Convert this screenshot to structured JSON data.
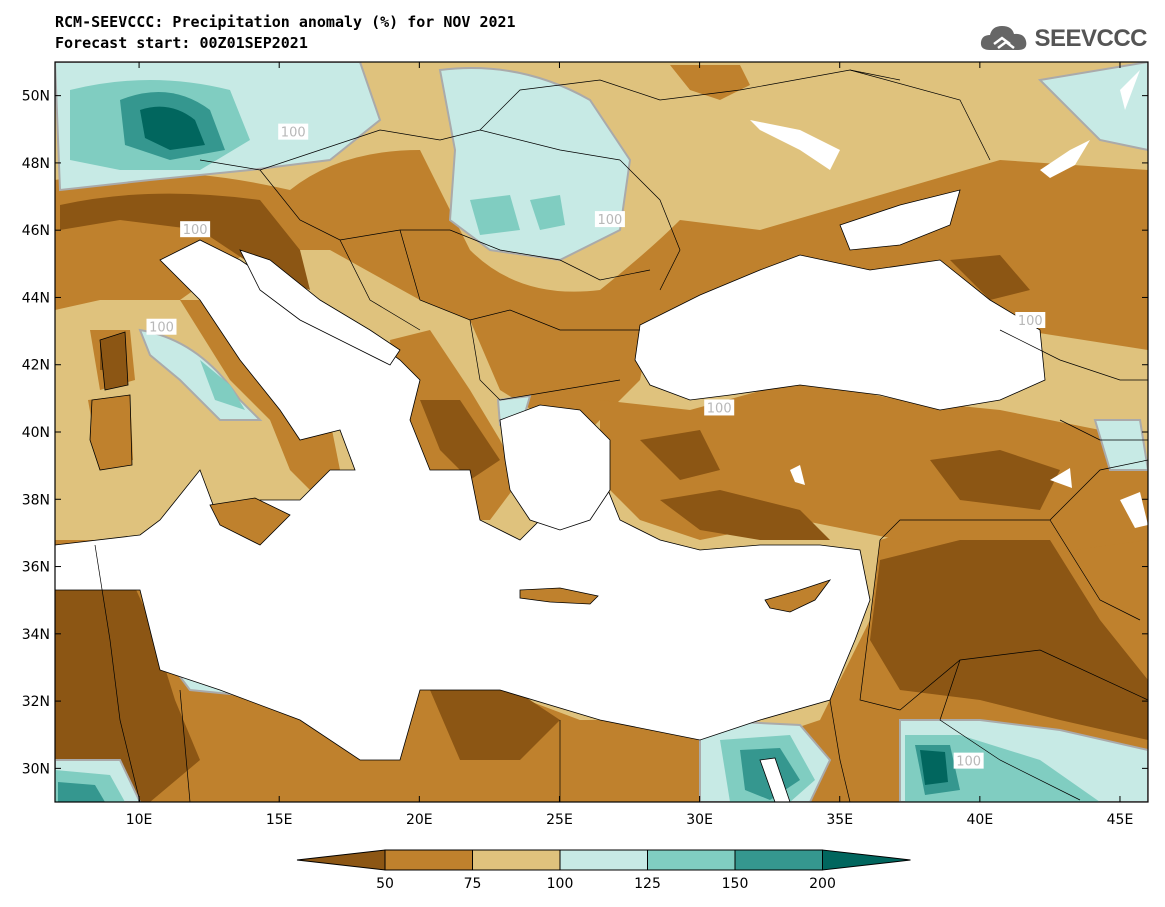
{
  "header": {
    "title_line1": "RCM-SEEVCCC: Precipitation anomaly (%) for NOV 2021",
    "title_line2": "Forecast start: 00Z01SEP2021"
  },
  "logo": {
    "text": "SEEVCCC",
    "icon": "cloud-icon"
  },
  "map": {
    "lon_range": [
      7,
      46
    ],
    "lat_range": [
      29,
      51
    ],
    "lat_ticks": [
      {
        "v": 30,
        "label": "30N"
      },
      {
        "v": 32,
        "label": "32N"
      },
      {
        "v": 34,
        "label": "34N"
      },
      {
        "v": 36,
        "label": "36N"
      },
      {
        "v": 38,
        "label": "38N"
      },
      {
        "v": 40,
        "label": "40N"
      },
      {
        "v": 42,
        "label": "42N"
      },
      {
        "v": 44,
        "label": "44N"
      },
      {
        "v": 46,
        "label": "46N"
      },
      {
        "v": 48,
        "label": "48N"
      },
      {
        "v": 50,
        "label": "50N"
      }
    ],
    "lon_ticks": [
      {
        "v": 10,
        "label": "10E"
      },
      {
        "v": 15,
        "label": "15E"
      },
      {
        "v": 20,
        "label": "20E"
      },
      {
        "v": 25,
        "label": "25E"
      },
      {
        "v": 30,
        "label": "30E"
      },
      {
        "v": 35,
        "label": "35E"
      },
      {
        "v": 40,
        "label": "40E"
      },
      {
        "v": 45,
        "label": "45E"
      }
    ],
    "contour_labels": [
      {
        "lon": 15.5,
        "lat": 48.9,
        "text": "100"
      },
      {
        "lon": 12.0,
        "lat": 46.0,
        "text": "100"
      },
      {
        "lon": 10.8,
        "lat": 43.1,
        "text": "100"
      },
      {
        "lon": 26.8,
        "lat": 46.3,
        "text": "100"
      },
      {
        "lon": 41.8,
        "lat": 43.3,
        "text": "100"
      },
      {
        "lon": 30.7,
        "lat": 40.7,
        "text": "100"
      },
      {
        "lon": 39.6,
        "lat": 30.2,
        "text": "100"
      }
    ],
    "colors": {
      "below_50": "#8c5614",
      "50_75": "#bf812d",
      "75_100": "#dfc27d",
      "100_125": "#c7eae5",
      "125_150": "#80cdc1",
      "150_200": "#35978f",
      "above_200": "#01665e",
      "sea": "#ffffff"
    }
  },
  "colorbar": {
    "ticks": [
      "50",
      "75",
      "100",
      "125",
      "150",
      "200"
    ],
    "colors": [
      "#8c5614",
      "#bf812d",
      "#dfc27d",
      "#c7eae5",
      "#80cdc1",
      "#35978f",
      "#01665e"
    ]
  }
}
